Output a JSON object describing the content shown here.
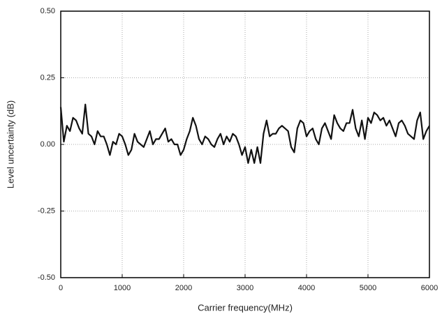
{
  "chart_data": {
    "type": "line",
    "xlabel": "Carrier frequency(MHz)",
    "ylabel": "Level uncertainty (dB)",
    "x": [
      0,
      50,
      100,
      150,
      200,
      250,
      300,
      350,
      400,
      450,
      500,
      550,
      600,
      650,
      700,
      750,
      800,
      850,
      900,
      950,
      1000,
      1050,
      1100,
      1150,
      1200,
      1250,
      1300,
      1350,
      1400,
      1450,
      1500,
      1550,
      1600,
      1650,
      1700,
      1750,
      1800,
      1850,
      1900,
      1950,
      2000,
      2050,
      2100,
      2150,
      2200,
      2250,
      2300,
      2350,
      2400,
      2450,
      2500,
      2550,
      2600,
      2650,
      2700,
      2750,
      2800,
      2850,
      2900,
      2950,
      3000,
      3050,
      3100,
      3150,
      3200,
      3250,
      3300,
      3350,
      3400,
      3450,
      3500,
      3550,
      3600,
      3650,
      3700,
      3750,
      3800,
      3850,
      3900,
      3950,
      4000,
      4050,
      4100,
      4150,
      4200,
      4250,
      4300,
      4350,
      4400,
      4450,
      4500,
      4550,
      4600,
      4650,
      4700,
      4750,
      4800,
      4850,
      4900,
      4950,
      5000,
      5050,
      5100,
      5150,
      5200,
      5250,
      5300,
      5350,
      5400,
      5450,
      5500,
      5550,
      5600,
      5650,
      5700,
      5750,
      5800,
      5850,
      5900,
      5950,
      6000
    ],
    "values": [
      0.14,
      0.01,
      0.07,
      0.05,
      0.1,
      0.09,
      0.06,
      0.04,
      0.15,
      0.04,
      0.03,
      0.0,
      0.05,
      0.03,
      0.03,
      0.0,
      -0.04,
      0.01,
      0.0,
      0.04,
      0.03,
      0.0,
      -0.04,
      -0.02,
      0.04,
      0.01,
      0.0,
      -0.01,
      0.02,
      0.05,
      0.0,
      0.02,
      0.02,
      0.04,
      0.06,
      0.01,
      0.02,
      0.0,
      0.0,
      -0.04,
      -0.02,
      0.02,
      0.05,
      0.1,
      0.07,
      0.02,
      0.0,
      0.03,
      0.02,
      0.0,
      -0.01,
      0.02,
      0.04,
      0.0,
      0.03,
      0.01,
      0.04,
      0.03,
      0.0,
      -0.04,
      -0.01,
      -0.07,
      -0.02,
      -0.07,
      -0.01,
      -0.07,
      0.04,
      0.09,
      0.03,
      0.04,
      0.04,
      0.06,
      0.07,
      0.06,
      0.05,
      -0.01,
      -0.03,
      0.06,
      0.09,
      0.08,
      0.03,
      0.05,
      0.06,
      0.02,
      0.0,
      0.06,
      0.08,
      0.05,
      0.02,
      0.11,
      0.08,
      0.06,
      0.05,
      0.08,
      0.08,
      0.13,
      0.06,
      0.03,
      0.09,
      0.02,
      0.1,
      0.08,
      0.12,
      0.11,
      0.09,
      0.1,
      0.07,
      0.09,
      0.06,
      0.03,
      0.08,
      0.09,
      0.07,
      0.04,
      0.03,
      0.02,
      0.09,
      0.12,
      0.02,
      0.05,
      0.07
    ],
    "color": "#111111",
    "xlim": [
      0,
      6000
    ],
    "xticks": [
      0,
      1000,
      2000,
      3000,
      4000,
      5000,
      6000
    ],
    "ylim": [
      -0.5,
      0.5
    ],
    "yticks": [
      {
        "value": 0.5,
        "label": "0.50"
      },
      {
        "value": 0.25,
        "label": "0.25"
      },
      {
        "value": 0,
        "label": "0.00"
      },
      {
        "value": -0.25,
        "label": "-0.25"
      },
      {
        "value": -0.5,
        "label": "-0.50"
      }
    ],
    "grid": true
  }
}
